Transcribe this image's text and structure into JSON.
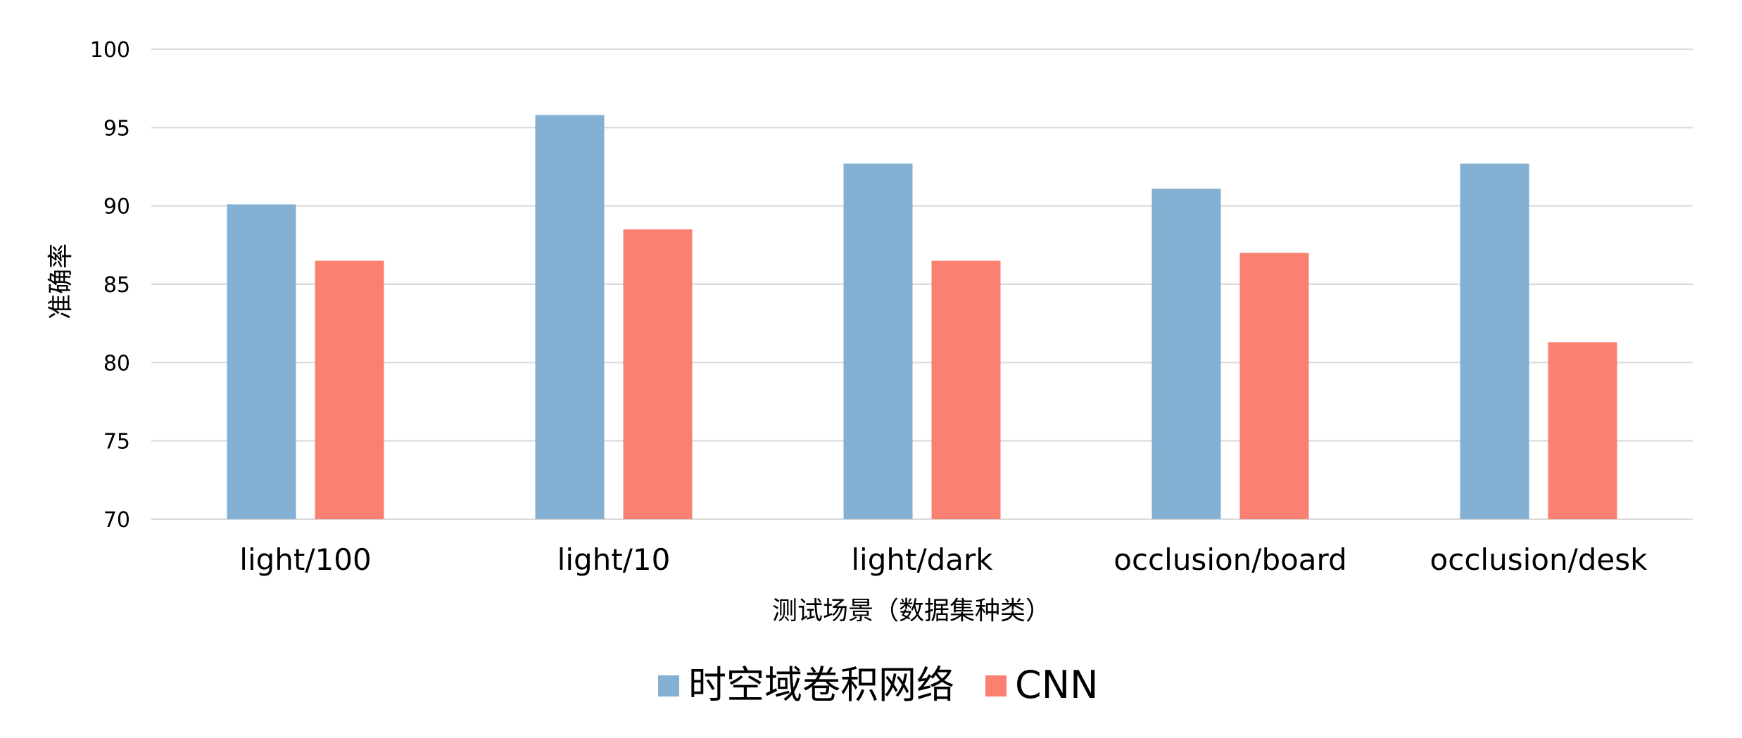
{
  "chart_data": {
    "type": "bar",
    "categories": [
      "light/100",
      "light/10",
      "light/dark",
      "occlusion/board",
      "occlusion/desk"
    ],
    "series": [
      {
        "name": "时空域卷积网络",
        "values": [
          90.1,
          95.8,
          92.7,
          91.1,
          92.7
        ],
        "color": "#83b0d3"
      },
      {
        "name": "CNN",
        "values": [
          86.5,
          88.5,
          86.5,
          87.0,
          81.3
        ],
        "color": "#fa8072"
      }
    ],
    "title": "",
    "xlabel": "测试场景（数据集种类）",
    "ylabel": "准确率",
    "ylim": [
      70,
      100
    ],
    "yticks": [
      70,
      75,
      80,
      85,
      90,
      95,
      100
    ],
    "grid": true,
    "legend_position": "bottom"
  }
}
